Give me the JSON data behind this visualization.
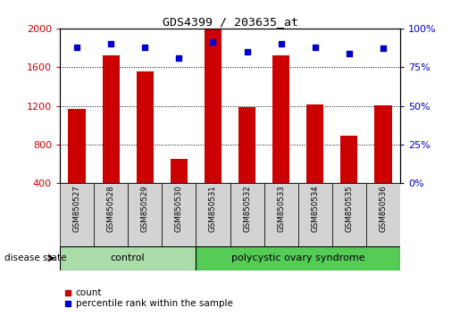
{
  "title": "GDS4399 / 203635_at",
  "samples": [
    "GSM850527",
    "GSM850528",
    "GSM850529",
    "GSM850530",
    "GSM850531",
    "GSM850532",
    "GSM850533",
    "GSM850534",
    "GSM850535",
    "GSM850536"
  ],
  "counts": [
    1165,
    1720,
    1555,
    650,
    1990,
    1185,
    1720,
    1215,
    890,
    1205
  ],
  "percentile_ranks": [
    88,
    90,
    88,
    81,
    91,
    85,
    90,
    88,
    84,
    87
  ],
  "bar_color": "#cc0000",
  "dot_color": "#0000cc",
  "ylim_left": [
    400,
    2000
  ],
  "yticks_left": [
    400,
    800,
    1200,
    1600,
    2000
  ],
  "ylim_right": [
    0,
    100
  ],
  "yticks_right": [
    0,
    25,
    50,
    75,
    100
  ],
  "control_indices": [
    0,
    1,
    2,
    3
  ],
  "disease_indices": [
    4,
    5,
    6,
    7,
    8,
    9
  ],
  "control_label": "control",
  "disease_label": "polycystic ovary syndrome",
  "disease_state_label": "disease state",
  "legend_count_label": "count",
  "legend_percentile_label": "percentile rank within the sample",
  "bar_width": 0.5,
  "control_color": "#aaddaa",
  "disease_color": "#55cc55",
  "tick_label_color_left": "#cc0000",
  "tick_label_color_right": "#0000cc",
  "sample_box_color": "#d3d3d3",
  "background_color": "#ffffff"
}
